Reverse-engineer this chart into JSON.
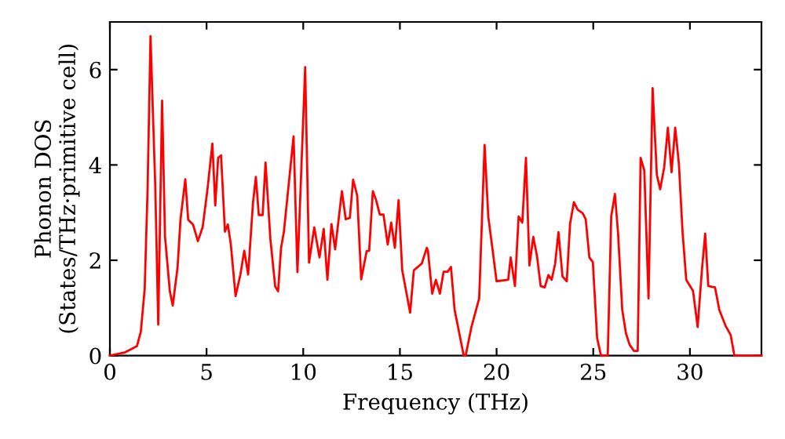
{
  "chart_data": {
    "type": "line",
    "xlabel": "Frequency (THz)",
    "ylabel": "Phonon DOS\n(States/THz·primitive cell)",
    "xlim": [
      0,
      33.7
    ],
    "ylim": [
      0,
      7
    ],
    "xticks": [
      0,
      5,
      10,
      15,
      20,
      25,
      30
    ],
    "yticks": [
      0,
      2,
      4,
      6
    ],
    "grid": false,
    "legend": false,
    "series": [
      {
        "color": "#ff0000",
        "x": [
          0,
          0.8,
          1.4,
          1.6,
          1.8,
          1.95,
          2.1,
          2.35,
          2.5,
          2.7,
          2.85,
          3.1,
          3.25,
          3.5,
          3.65,
          3.9,
          4.05,
          4.3,
          4.55,
          4.8,
          5.05,
          5.3,
          5.45,
          5.6,
          5.75,
          5.95,
          6.1,
          6.25,
          6.5,
          6.75,
          6.95,
          7.15,
          7.4,
          7.55,
          7.7,
          7.9,
          8.05,
          8.3,
          8.55,
          8.7,
          8.85,
          9.0,
          9.5,
          9.7,
          10.1,
          10.3,
          10.57,
          10.84,
          11.06,
          11.25,
          11.46,
          11.65,
          12.0,
          12.2,
          12.41,
          12.58,
          12.79,
          13.0,
          13.28,
          13.41,
          13.6,
          13.77,
          13.96,
          14.15,
          14.37,
          14.55,
          14.74,
          14.93,
          15.12,
          15.53,
          15.72,
          16.13,
          16.39,
          16.45,
          16.67,
          16.86,
          17.07,
          17.26,
          17.47,
          17.64,
          17.83,
          18.3,
          18.4,
          18.7,
          19.1,
          19.38,
          19.57,
          19.78,
          20.0,
          20.6,
          20.73,
          20.95,
          21.14,
          21.33,
          21.52,
          21.7,
          21.9,
          22.09,
          22.28,
          22.49,
          22.68,
          22.85,
          23.03,
          23.2,
          23.41,
          23.63,
          23.8,
          24.0,
          24.2,
          24.45,
          24.61,
          24.8,
          24.98,
          25.2,
          25.4,
          25.75,
          25.93,
          26.12,
          26.28,
          26.5,
          26.69,
          26.88,
          27.1,
          27.3,
          27.45,
          27.64,
          27.86,
          28.07,
          28.29,
          28.46,
          28.67,
          28.86,
          29.05,
          29.24,
          29.43,
          29.62,
          29.81,
          30.16,
          30.4,
          30.62,
          30.79,
          30.95,
          31.3,
          31.52,
          31.84,
          32.11,
          32.3,
          33.7
        ],
        "values": [
          0,
          0.07,
          0.2,
          0.5,
          1.4,
          3.5,
          6.7,
          3.5,
          0.65,
          5.35,
          2.5,
          1.35,
          1.05,
          1.85,
          2.85,
          3.7,
          2.85,
          2.75,
          2.4,
          2.7,
          3.5,
          4.45,
          3.15,
          4.15,
          4.2,
          2.6,
          2.75,
          2.35,
          1.25,
          1.7,
          2.2,
          1.7,
          3.2,
          3.75,
          2.95,
          2.95,
          4.05,
          2.45,
          1.45,
          1.35,
          2.25,
          2.6,
          4.6,
          1.75,
          6.05,
          1.95,
          2.69,
          2.06,
          2.66,
          1.59,
          2.76,
          2.23,
          3.45,
          2.86,
          2.89,
          3.69,
          3.36,
          1.6,
          2.19,
          2.2,
          3.45,
          3.26,
          2.96,
          2.96,
          2.33,
          2.79,
          2.26,
          3.26,
          1.79,
          0.9,
          1.79,
          1.93,
          2.26,
          2.2,
          1.3,
          1.59,
          1.3,
          1.76,
          1.76,
          1.86,
          0.96,
          0,
          0,
          0.6,
          1.2,
          4.42,
          2.92,
          2.26,
          1.56,
          1.59,
          2.06,
          1.46,
          2.92,
          2.79,
          4.15,
          1.89,
          2.49,
          2.09,
          1.46,
          1.43,
          1.69,
          1.59,
          1.93,
          2.59,
          1.66,
          1.56,
          2.76,
          3.22,
          3.06,
          2.99,
          2.86,
          2.06,
          1.96,
          0.37,
          0,
          0,
          2.92,
          3.39,
          2.59,
          0.96,
          0.47,
          0.23,
          0.1,
          0.1,
          4.15,
          3.89,
          1.2,
          5.61,
          3.79,
          3.49,
          3.95,
          4.78,
          3.85,
          4.78,
          4.02,
          2.59,
          1.59,
          1.36,
          0.6,
          1.79,
          2.56,
          1.46,
          1.43,
          0.96,
          0.63,
          0.43,
          0,
          0
        ]
      }
    ]
  }
}
